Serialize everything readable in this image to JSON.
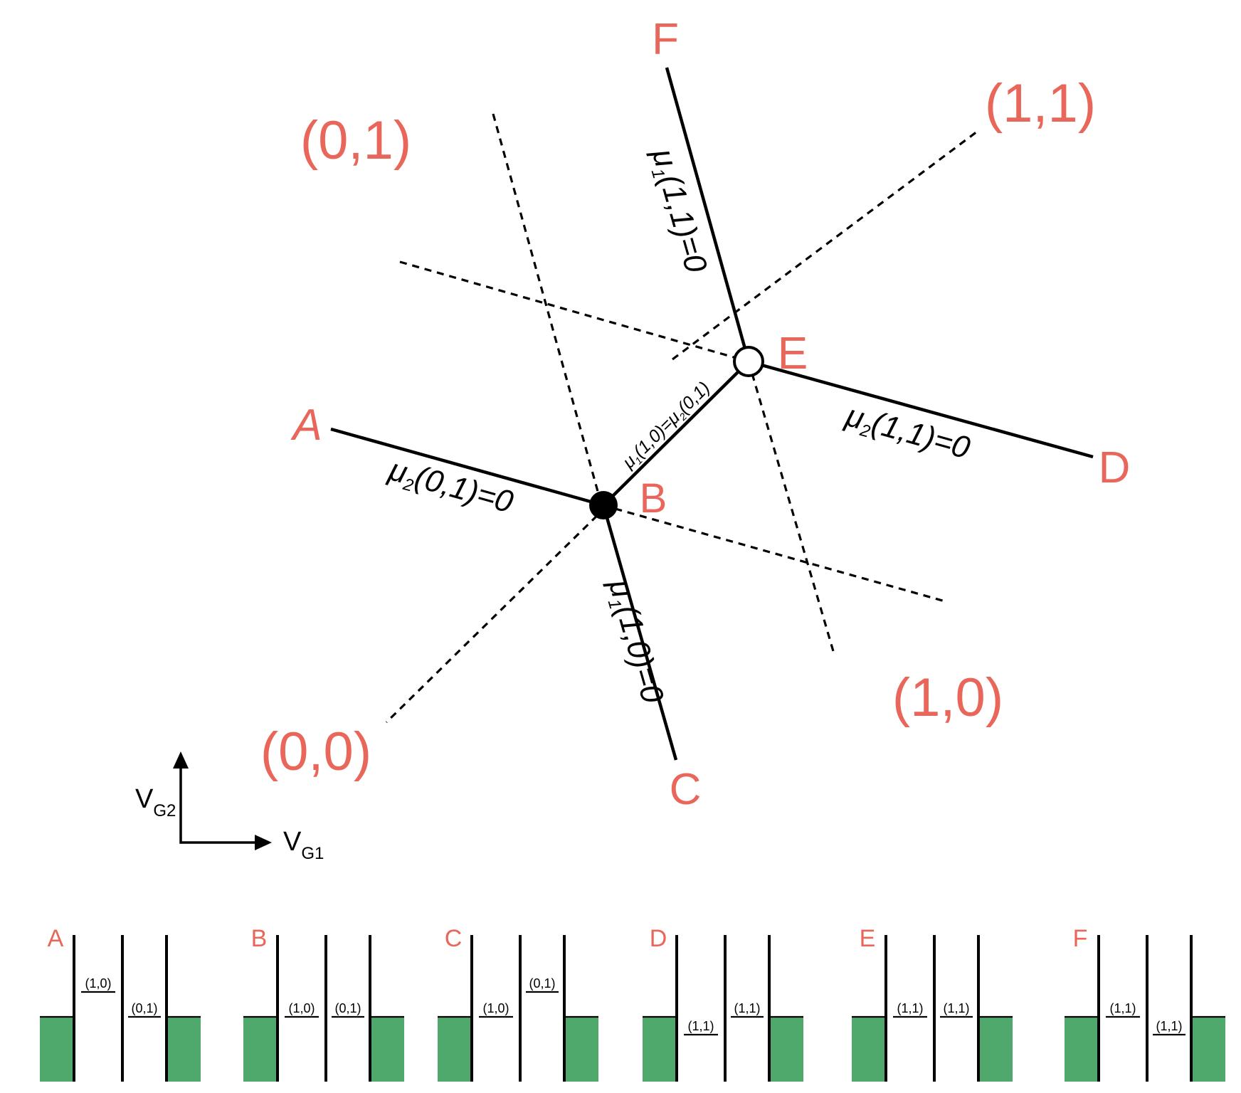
{
  "colors": {
    "label": "#e8675a",
    "lead": "#4fa96d",
    "line": "#000000"
  },
  "regions": {
    "r00": "(0,0)",
    "r01": "(0,1)",
    "r10": "(1,0)",
    "r11": "(1,1)"
  },
  "points": {
    "A": "A",
    "B": "B",
    "C": "C",
    "D": "D",
    "E": "E",
    "F": "F"
  },
  "boundaries": {
    "mu2_01": {
      "mu": "μ",
      "sub": "2",
      "rest": "(0,1)=0"
    },
    "mu1_10": {
      "mu": "μ",
      "sub": "1",
      "rest": "(1,0)=0"
    },
    "mu1_11": {
      "mu": "μ",
      "sub": "1",
      "rest": "(1,1)=0"
    },
    "mu2_11": {
      "mu": "μ",
      "sub": "2",
      "rest": "(1,1)=0"
    },
    "mid": {
      "mu_a": "μ",
      "sub_a": "1",
      "mid": "(1,0)=",
      "mu_b": "μ",
      "sub_b": "2",
      "end": "(0,1)"
    }
  },
  "axes": {
    "y": {
      "main": "V",
      "sub": "G2"
    },
    "x": {
      "main": "V",
      "sub": "G1"
    }
  },
  "panels": [
    {
      "label": "A",
      "left": "(1,0)",
      "right": "(0,1)"
    },
    {
      "label": "B",
      "left": "(1,0)",
      "right": "(0,1)"
    },
    {
      "label": "C",
      "left": "(1,0)",
      "right": "(0,1)"
    },
    {
      "label": "D",
      "left": "(1,1)",
      "right": "(1,1)"
    },
    {
      "label": "E",
      "left": "(1,1)",
      "right": "(1,1)"
    },
    {
      "label": "F",
      "left": "(1,1)",
      "right": "(1,1)"
    }
  ]
}
